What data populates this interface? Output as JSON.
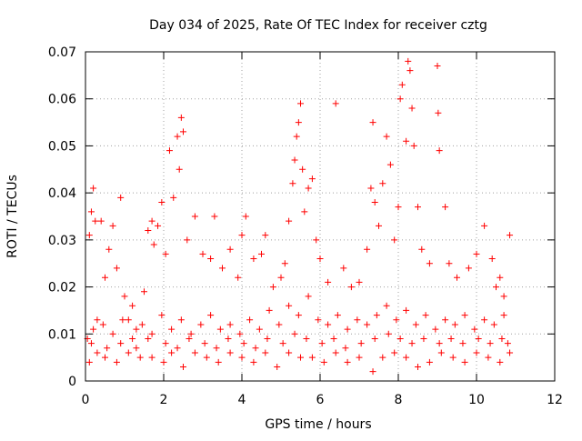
{
  "chart_data": {
    "type": "scatter",
    "title": "Day 034 of 2025, Rate Of TEC Index for receiver cztg",
    "xlabel": "GPS time / hours",
    "ylabel": "ROTI / TECUs",
    "xlim": [
      0,
      12
    ],
    "ylim": [
      0,
      0.07
    ],
    "x_ticks": [
      0,
      2,
      4,
      6,
      8,
      10,
      12
    ],
    "x_tick_labels": [
      "0",
      "2",
      "4",
      "6",
      "8",
      "10",
      "12"
    ],
    "y_ticks": [
      0,
      0.01,
      0.02,
      0.03,
      0.04,
      0.05,
      0.06,
      0.07
    ],
    "y_tick_labels": [
      "0",
      "0.01",
      "0.02",
      "0.03",
      "0.04",
      "0.05",
      "0.06",
      "0.07"
    ],
    "grid": true,
    "marker": "+",
    "color": "#ff0000",
    "x_range_of_data": [
      0,
      10.85
    ],
    "series": [
      {
        "name": "ROTI",
        "points": [
          [
            0.05,
            0.009
          ],
          [
            0.1,
            0.031
          ],
          [
            0.15,
            0.036
          ],
          [
            0.2,
            0.041
          ],
          [
            0.25,
            0.034
          ],
          [
            0.3,
            0.013
          ],
          [
            0.4,
            0.034
          ],
          [
            0.5,
            0.022
          ],
          [
            0.6,
            0.028
          ],
          [
            0.7,
            0.033
          ],
          [
            0.8,
            0.024
          ],
          [
            0.9,
            0.039
          ],
          [
            1.0,
            0.018
          ],
          [
            1.1,
            0.013
          ],
          [
            1.2,
            0.016
          ],
          [
            1.3,
            0.011
          ],
          [
            1.5,
            0.019
          ],
          [
            1.6,
            0.032
          ],
          [
            1.7,
            0.034
          ],
          [
            1.75,
            0.029
          ],
          [
            1.85,
            0.033
          ],
          [
            1.95,
            0.038
          ],
          [
            2.05,
            0.027
          ],
          [
            2.15,
            0.049
          ],
          [
            2.25,
            0.039
          ],
          [
            2.35,
            0.052
          ],
          [
            2.4,
            0.045
          ],
          [
            2.45,
            0.056
          ],
          [
            2.5,
            0.053
          ],
          [
            2.6,
            0.03
          ],
          [
            2.8,
            0.035
          ],
          [
            3.0,
            0.027
          ],
          [
            3.2,
            0.026
          ],
          [
            3.3,
            0.035
          ],
          [
            3.5,
            0.024
          ],
          [
            3.7,
            0.028
          ],
          [
            3.9,
            0.022
          ],
          [
            4.0,
            0.031
          ],
          [
            4.1,
            0.035
          ],
          [
            4.3,
            0.026
          ],
          [
            4.5,
            0.027
          ],
          [
            4.6,
            0.031
          ],
          [
            4.8,
            0.02
          ],
          [
            5.0,
            0.022
          ],
          [
            5.1,
            0.025
          ],
          [
            5.2,
            0.034
          ],
          [
            5.3,
            0.042
          ],
          [
            5.35,
            0.047
          ],
          [
            5.4,
            0.052
          ],
          [
            5.45,
            0.055
          ],
          [
            5.5,
            0.059
          ],
          [
            5.55,
            0.045
          ],
          [
            5.6,
            0.036
          ],
          [
            5.7,
            0.041
          ],
          [
            5.8,
            0.043
          ],
          [
            5.9,
            0.03
          ],
          [
            6.0,
            0.026
          ],
          [
            6.2,
            0.021
          ],
          [
            6.4,
            0.059
          ],
          [
            6.6,
            0.024
          ],
          [
            6.8,
            0.02
          ],
          [
            7.0,
            0.021
          ],
          [
            7.2,
            0.028
          ],
          [
            7.3,
            0.041
          ],
          [
            7.35,
            0.055
          ],
          [
            7.4,
            0.038
          ],
          [
            7.5,
            0.033
          ],
          [
            7.6,
            0.042
          ],
          [
            7.7,
            0.052
          ],
          [
            7.8,
            0.046
          ],
          [
            7.9,
            0.03
          ],
          [
            8.0,
            0.037
          ],
          [
            8.05,
            0.06
          ],
          [
            8.1,
            0.063
          ],
          [
            8.2,
            0.051
          ],
          [
            8.25,
            0.068
          ],
          [
            8.3,
            0.066
          ],
          [
            8.35,
            0.058
          ],
          [
            8.4,
            0.05
          ],
          [
            8.5,
            0.037
          ],
          [
            8.6,
            0.028
          ],
          [
            8.8,
            0.025
          ],
          [
            9.0,
            0.067
          ],
          [
            9.02,
            0.057
          ],
          [
            9.05,
            0.049
          ],
          [
            9.2,
            0.037
          ],
          [
            9.3,
            0.025
          ],
          [
            9.5,
            0.022
          ],
          [
            9.8,
            0.024
          ],
          [
            10.0,
            0.027
          ],
          [
            10.2,
            0.033
          ],
          [
            10.4,
            0.026
          ],
          [
            10.5,
            0.02
          ],
          [
            10.6,
            0.022
          ],
          [
            10.7,
            0.018
          ],
          [
            10.85,
            0.031
          ],
          [
            0.1,
            0.004
          ],
          [
            0.3,
            0.006
          ],
          [
            0.5,
            0.005
          ],
          [
            0.8,
            0.004
          ],
          [
            1.1,
            0.006
          ],
          [
            1.4,
            0.005
          ],
          [
            1.7,
            0.005
          ],
          [
            2.0,
            0.004
          ],
          [
            2.2,
            0.006
          ],
          [
            2.5,
            0.003
          ],
          [
            2.8,
            0.006
          ],
          [
            3.1,
            0.005
          ],
          [
            3.4,
            0.004
          ],
          [
            3.7,
            0.006
          ],
          [
            4.0,
            0.005
          ],
          [
            4.3,
            0.004
          ],
          [
            4.6,
            0.006
          ],
          [
            4.9,
            0.003
          ],
          [
            5.2,
            0.006
          ],
          [
            5.5,
            0.005
          ],
          [
            5.8,
            0.005
          ],
          [
            6.1,
            0.004
          ],
          [
            6.4,
            0.006
          ],
          [
            6.7,
            0.004
          ],
          [
            7.0,
            0.005
          ],
          [
            7.35,
            0.002
          ],
          [
            7.6,
            0.005
          ],
          [
            7.9,
            0.006
          ],
          [
            8.2,
            0.005
          ],
          [
            8.5,
            0.003
          ],
          [
            8.8,
            0.004
          ],
          [
            9.1,
            0.006
          ],
          [
            9.4,
            0.005
          ],
          [
            9.7,
            0.004
          ],
          [
            10.0,
            0.006
          ],
          [
            10.3,
            0.005
          ],
          [
            10.6,
            0.004
          ],
          [
            10.85,
            0.006
          ],
          [
            0.2,
            0.011
          ],
          [
            0.45,
            0.012
          ],
          [
            0.7,
            0.01
          ],
          [
            0.95,
            0.013
          ],
          [
            1.2,
            0.009
          ],
          [
            1.45,
            0.012
          ],
          [
            1.7,
            0.01
          ],
          [
            1.95,
            0.014
          ],
          [
            2.2,
            0.011
          ],
          [
            2.45,
            0.013
          ],
          [
            2.7,
            0.01
          ],
          [
            2.95,
            0.012
          ],
          [
            3.2,
            0.014
          ],
          [
            3.45,
            0.011
          ],
          [
            3.7,
            0.012
          ],
          [
            3.95,
            0.01
          ],
          [
            4.2,
            0.013
          ],
          [
            4.45,
            0.011
          ],
          [
            4.7,
            0.015
          ],
          [
            4.95,
            0.012
          ],
          [
            5.2,
            0.016
          ],
          [
            5.45,
            0.014
          ],
          [
            5.7,
            0.018
          ],
          [
            5.95,
            0.013
          ],
          [
            6.2,
            0.012
          ],
          [
            6.45,
            0.014
          ],
          [
            6.7,
            0.011
          ],
          [
            6.95,
            0.013
          ],
          [
            7.2,
            0.012
          ],
          [
            7.45,
            0.014
          ],
          [
            7.7,
            0.016
          ],
          [
            7.95,
            0.013
          ],
          [
            8.2,
            0.015
          ],
          [
            8.45,
            0.012
          ],
          [
            8.7,
            0.014
          ],
          [
            8.95,
            0.011
          ],
          [
            9.2,
            0.013
          ],
          [
            9.45,
            0.012
          ],
          [
            9.7,
            0.014
          ],
          [
            9.95,
            0.011
          ],
          [
            10.2,
            0.013
          ],
          [
            10.45,
            0.012
          ],
          [
            10.7,
            0.014
          ],
          [
            0.15,
            0.008
          ],
          [
            0.55,
            0.007
          ],
          [
            0.9,
            0.008
          ],
          [
            1.3,
            0.007
          ],
          [
            1.6,
            0.009
          ],
          [
            2.05,
            0.008
          ],
          [
            2.35,
            0.007
          ],
          [
            2.65,
            0.009
          ],
          [
            3.05,
            0.008
          ],
          [
            3.35,
            0.007
          ],
          [
            3.65,
            0.009
          ],
          [
            4.05,
            0.008
          ],
          [
            4.35,
            0.007
          ],
          [
            4.65,
            0.009
          ],
          [
            5.05,
            0.008
          ],
          [
            5.35,
            0.01
          ],
          [
            5.65,
            0.009
          ],
          [
            6.05,
            0.008
          ],
          [
            6.35,
            0.009
          ],
          [
            6.65,
            0.007
          ],
          [
            7.05,
            0.008
          ],
          [
            7.4,
            0.009
          ],
          [
            7.75,
            0.01
          ],
          [
            8.05,
            0.009
          ],
          [
            8.35,
            0.008
          ],
          [
            8.65,
            0.009
          ],
          [
            9.05,
            0.008
          ],
          [
            9.35,
            0.009
          ],
          [
            9.65,
            0.008
          ],
          [
            10.05,
            0.009
          ],
          [
            10.35,
            0.008
          ],
          [
            10.65,
            0.009
          ],
          [
            10.8,
            0.008
          ]
        ]
      }
    ]
  }
}
